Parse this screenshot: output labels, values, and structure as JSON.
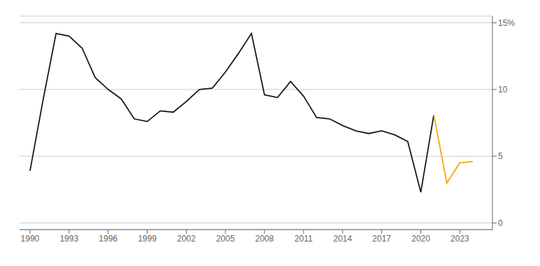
{
  "chart_data": {
    "type": "line",
    "series": [
      {
        "color": "#1a1a1a",
        "x": [
          1990,
          1991,
          1992,
          1993,
          1994,
          1995,
          1996,
          1997,
          1998,
          1999,
          2000,
          2001,
          2002,
          2003,
          2004,
          2005,
          2006,
          2007,
          2008,
          2009,
          2010,
          2011,
          2012,
          2013,
          2014,
          2015,
          2016,
          2017,
          2018,
          2019,
          2020,
          2021
        ],
        "values": [
          3.9,
          9.2,
          14.2,
          14.0,
          13.1,
          10.9,
          10.0,
          9.3,
          7.8,
          7.6,
          8.4,
          8.3,
          9.1,
          10.0,
          10.1,
          11.3,
          12.7,
          14.2,
          9.6,
          9.4,
          10.6,
          9.5,
          7.9,
          7.8,
          7.3,
          6.9,
          6.7,
          6.9,
          6.6,
          6.1,
          2.3,
          8.1
        ]
      },
      {
        "color": "#F5A800",
        "x": [
          2021,
          2022,
          2023,
          2024
        ],
        "values": [
          8.1,
          3.0,
          4.5,
          4.6
        ]
      }
    ],
    "xlim": [
      1989.2,
      2025.5
    ],
    "xticks": [
      1990,
      1993,
      1996,
      1999,
      2002,
      2005,
      2008,
      2011,
      2014,
      2017,
      2020,
      2023
    ],
    "ylim": [
      -0.5,
      15.5
    ],
    "yticks": [
      0,
      5,
      10,
      {
        "value": 15,
        "label": "15%"
      }
    ],
    "grid": "y"
  }
}
